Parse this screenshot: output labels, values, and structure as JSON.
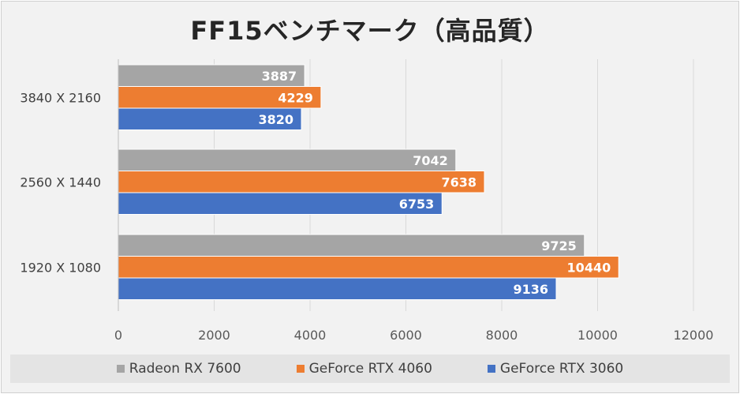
{
  "chart_data": {
    "type": "bar",
    "orientation": "horizontal",
    "title": "FF15ベンチマーク（高品質）",
    "categories": [
      "3840 X 2160",
      "2560 X 1440",
      "1920 X 1080"
    ],
    "series": [
      {
        "name": "Radeon RX 7600",
        "color": "#a5a5a5",
        "values": [
          3887,
          7042,
          9725
        ]
      },
      {
        "name": "GeForce RTX 4060",
        "color": "#ed7d31",
        "values": [
          4229,
          7638,
          10440
        ]
      },
      {
        "name": "GeForce RTX 3060",
        "color": "#4472c4",
        "values": [
          3820,
          6753,
          9136
        ]
      }
    ],
    "xlim": [
      0,
      12000
    ],
    "xticks": [
      "0",
      "2000",
      "4000",
      "6000",
      "8000",
      "10000",
      "12000"
    ],
    "grid": true,
    "legend_position": "bottom"
  }
}
